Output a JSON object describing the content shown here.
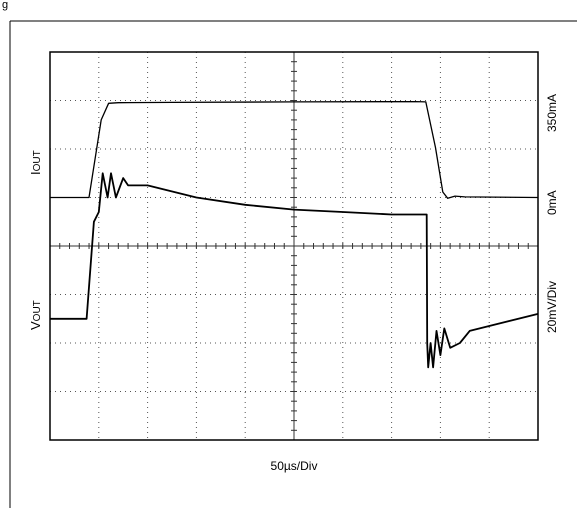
{
  "header_fragment": "g",
  "labels": {
    "iout_main": "I",
    "iout_sub": "OUT",
    "vout_main": "V",
    "vout_sub": "OUT",
    "right_top": "350mA",
    "right_mid": "0mA",
    "right_bottom": "20mV/Div",
    "x_scale": "50µs/Div"
  },
  "colors": {
    "trace": "#000000",
    "grid": "#555555",
    "border": "#000000"
  },
  "chart_data": {
    "type": "line",
    "title": "",
    "xlabel": "50µs/Div",
    "grid": true,
    "divisions": {
      "x": 10,
      "y": 8
    },
    "series": [
      {
        "name": "IOUT",
        "units": "mA",
        "points": [
          [
            0,
            0
          ],
          [
            0.8,
            0
          ],
          [
            1.05,
            280
          ],
          [
            1.2,
            340
          ],
          [
            1.4,
            342
          ],
          [
            2.5,
            343
          ],
          [
            5,
            345
          ],
          [
            7.5,
            346
          ],
          [
            7.7,
            345
          ],
          [
            7.9,
            180
          ],
          [
            8.05,
            20
          ],
          [
            8.15,
            -3
          ],
          [
            8.3,
            5
          ],
          [
            8.5,
            2
          ],
          [
            10,
            0
          ]
        ]
      },
      {
        "name": "VOUT",
        "units": "mV",
        "points": [
          [
            0,
            0
          ],
          [
            0.75,
            0
          ],
          [
            0.9,
            40
          ],
          [
            1.0,
            44
          ],
          [
            1.08,
            60
          ],
          [
            1.18,
            50
          ],
          [
            1.25,
            60
          ],
          [
            1.35,
            50
          ],
          [
            1.5,
            58
          ],
          [
            1.6,
            55
          ],
          [
            2.0,
            55
          ],
          [
            3,
            50
          ],
          [
            4,
            47
          ],
          [
            5,
            45
          ],
          [
            6,
            44
          ],
          [
            7,
            43
          ],
          [
            7.72,
            43
          ],
          [
            7.73,
            -10
          ],
          [
            7.75,
            -20
          ],
          [
            7.8,
            -10
          ],
          [
            7.85,
            -20
          ],
          [
            7.92,
            -5
          ],
          [
            8.0,
            -15
          ],
          [
            8.08,
            -4
          ],
          [
            8.2,
            -12
          ],
          [
            8.4,
            -10
          ],
          [
            8.6,
            -5
          ],
          [
            9,
            -3
          ],
          [
            10,
            2
          ]
        ]
      }
    ],
    "annotations": [
      "350mA",
      "0mA",
      "20mV/Div"
    ]
  }
}
